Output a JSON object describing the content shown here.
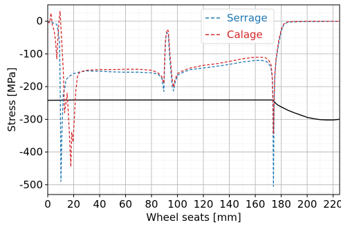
{
  "chart_data": {
    "type": "line",
    "title": "",
    "xlabel": "Wheel seats [mm]",
    "ylabel": "Stress [MPa]",
    "xlim": [
      0,
      225
    ],
    "ylim": [
      -530,
      50
    ],
    "xticks": [
      0,
      20,
      40,
      60,
      80,
      100,
      120,
      140,
      160,
      180,
      200,
      220
    ],
    "yticks": [
      0,
      -100,
      -200,
      -300,
      -400,
      -500
    ],
    "grid": true,
    "legend": "top-right",
    "series": [
      {
        "name": "Serrage",
        "color": "#1f77b4",
        "style": "dashed",
        "points": [
          [
            0,
            -5
          ],
          [
            2,
            0
          ],
          [
            4,
            -5
          ],
          [
            6,
            -8
          ],
          [
            7,
            -10
          ],
          [
            8,
            -30
          ],
          [
            9,
            -60
          ],
          [
            9.6,
            -200
          ],
          [
            10.2,
            -490
          ],
          [
            11,
            -330
          ],
          [
            12,
            -220
          ],
          [
            13,
            -210
          ],
          [
            14,
            -180
          ],
          [
            16,
            -170
          ],
          [
            18,
            -165
          ],
          [
            20,
            -160
          ],
          [
            25,
            -155
          ],
          [
            30,
            -152
          ],
          [
            40,
            -153
          ],
          [
            50,
            -155
          ],
          [
            60,
            -156
          ],
          [
            70,
            -156
          ],
          [
            80,
            -158
          ],
          [
            85,
            -162
          ],
          [
            88,
            -175
          ],
          [
            89.5,
            -215
          ],
          [
            90.5,
            -90
          ],
          [
            91,
            -50
          ],
          [
            92,
            -35
          ],
          [
            93,
            -45
          ],
          [
            94,
            -110
          ],
          [
            96,
            -200
          ],
          [
            97,
            -213
          ],
          [
            98,
            -190
          ],
          [
            100,
            -165
          ],
          [
            105,
            -155
          ],
          [
            110,
            -148
          ],
          [
            120,
            -143
          ],
          [
            130,
            -138
          ],
          [
            140,
            -132
          ],
          [
            150,
            -125
          ],
          [
            160,
            -120
          ],
          [
            165,
            -120
          ],
          [
            168,
            -122
          ],
          [
            170,
            -128
          ],
          [
            172,
            -140
          ],
          [
            173,
            -170
          ],
          [
            173.5,
            -220
          ],
          [
            174,
            -505
          ],
          [
            174.5,
            -250
          ],
          [
            175,
            -170
          ],
          [
            176,
            -120
          ],
          [
            178,
            -70
          ],
          [
            180,
            -30
          ],
          [
            182,
            -10
          ],
          [
            185,
            -3
          ],
          [
            190,
            -2
          ],
          [
            200,
            -1
          ],
          [
            210,
            -1
          ],
          [
            225,
            0
          ]
        ]
      },
      {
        "name": "Calage",
        "color": "#d62728",
        "style": "dashed",
        "points": [
          [
            0,
            0
          ],
          [
            1.5,
            -5
          ],
          [
            2.5,
            25
          ],
          [
            3.5,
            -10
          ],
          [
            5,
            -30
          ],
          [
            6,
            -60
          ],
          [
            7,
            -115
          ],
          [
            8,
            -40
          ],
          [
            9,
            15
          ],
          [
            9.5,
            30
          ],
          [
            10.5,
            -40
          ],
          [
            12,
            -150
          ],
          [
            13,
            -280
          ],
          [
            14,
            -250
          ],
          [
            15,
            -220
          ],
          [
            16,
            -290
          ],
          [
            17,
            -370
          ],
          [
            17.8,
            -445
          ],
          [
            18.5,
            -340
          ],
          [
            19.5,
            -370
          ],
          [
            20.5,
            -300
          ],
          [
            21.5,
            -220
          ],
          [
            23,
            -165
          ],
          [
            25,
            -155
          ],
          [
            30,
            -150
          ],
          [
            40,
            -148
          ],
          [
            50,
            -148
          ],
          [
            60,
            -147
          ],
          [
            70,
            -147
          ],
          [
            80,
            -150
          ],
          [
            85,
            -158
          ],
          [
            88,
            -170
          ],
          [
            89.5,
            -190
          ],
          [
            90.5,
            -80
          ],
          [
            91,
            -50
          ],
          [
            92,
            -25
          ],
          [
            93,
            -30
          ],
          [
            94,
            -90
          ],
          [
            96,
            -180
          ],
          [
            97,
            -202
          ],
          [
            98,
            -180
          ],
          [
            100,
            -160
          ],
          [
            105,
            -150
          ],
          [
            110,
            -143
          ],
          [
            120,
            -135
          ],
          [
            130,
            -130
          ],
          [
            140,
            -123
          ],
          [
            150,
            -115
          ],
          [
            160,
            -110
          ],
          [
            165,
            -110
          ],
          [
            168,
            -112
          ],
          [
            170,
            -118
          ],
          [
            172,
            -130
          ],
          [
            173,
            -165
          ],
          [
            173.5,
            -230
          ],
          [
            174,
            -345
          ],
          [
            174.5,
            -250
          ],
          [
            175,
            -165
          ],
          [
            176,
            -115
          ],
          [
            178,
            -60
          ],
          [
            180,
            -25
          ],
          [
            182,
            -8
          ],
          [
            185,
            -2
          ],
          [
            190,
            -1
          ],
          [
            200,
            0
          ],
          [
            210,
            0
          ],
          [
            225,
            0
          ]
        ]
      },
      {
        "color": "#000000",
        "style": "solid",
        "points": [
          [
            0,
            -242
          ],
          [
            20,
            -241
          ],
          [
            40,
            -241
          ],
          [
            60,
            -241
          ],
          [
            80,
            -241
          ],
          [
            100,
            -241
          ],
          [
            120,
            -241
          ],
          [
            140,
            -241
          ],
          [
            160,
            -241
          ],
          [
            170,
            -241
          ],
          [
            174,
            -241
          ],
          [
            175,
            -248
          ],
          [
            176,
            -252
          ],
          [
            178,
            -258
          ],
          [
            180,
            -262
          ],
          [
            185,
            -272
          ],
          [
            190,
            -280
          ],
          [
            195,
            -287
          ],
          [
            200,
            -294
          ],
          [
            205,
            -298
          ],
          [
            210,
            -301
          ],
          [
            215,
            -302
          ],
          [
            220,
            -302
          ],
          [
            225,
            -300
          ]
        ]
      }
    ]
  }
}
